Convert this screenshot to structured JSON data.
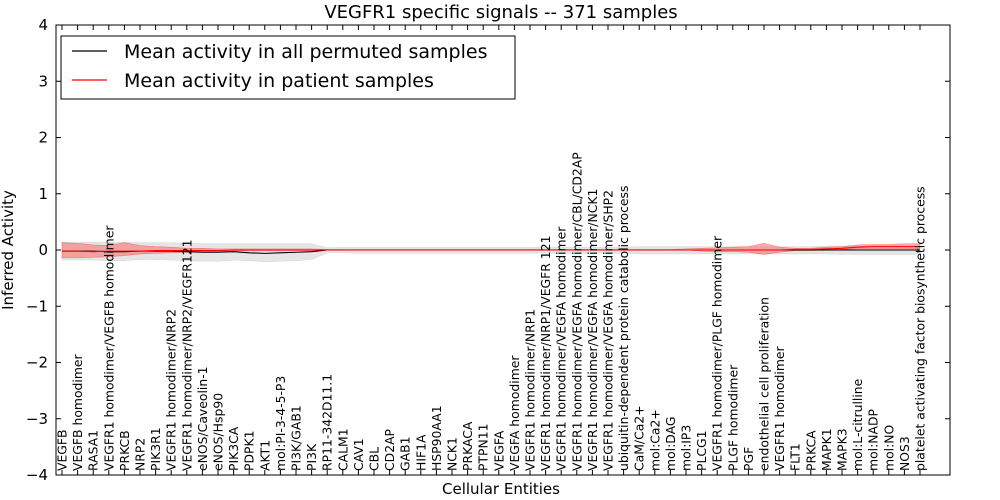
{
  "chart_data": {
    "type": "line",
    "title": "VEGFR1 specific signals -- 371 samples",
    "xlabel": "Cellular Entities",
    "ylabel": "Inferred Activity",
    "ylim": [
      -4,
      4
    ],
    "yticks": [
      -4,
      -3,
      -2,
      -1,
      0,
      1,
      2,
      3,
      4
    ],
    "grid": false,
    "legend_position": "top-left",
    "categories": [
      "VEGFB",
      "VEGFB homodimer",
      "RASA1",
      "VEGFR1 homodimer/VEGFB homodimer",
      "PRKCB",
      "NRP2",
      "PIK3R1",
      "VEGFR1 homodimer/NRP2",
      "VEGFR1 homodimer/NRP2/VEGFR121",
      "eNOS/Caveolin-1",
      "eNOS/Hsp90",
      "PIK3CA",
      "PDPK1",
      "AKT1",
      "mol:PI-3-4-5-P3",
      "PI3K/GAB1",
      "PI3K",
      "RP11-342D11.1",
      "CALM1",
      "CAV1",
      "CBL",
      "CD2AP",
      "GAB1",
      "HIF1A",
      "HSP90AA1",
      "NCK1",
      "PRKACA",
      "PTPN11",
      "VEGFA",
      "VEGFA homodimer",
      "VEGFR1 homodimer/NRP1",
      "VEGFR1 homodimer/NRP1/VEGFR 121",
      "VEGFR1 homodimer/VEGFA homodimer",
      "VEGFR1 homodimer/VEGFA homodimer/CBL/CD2AP",
      "VEGFR1 homodimer/VEGFA homodimer/NCK1",
      "VEGFR1 homodimer/VEGFA homodimer/SHP2",
      "ubiquitin-dependent protein catabolic process",
      "CaM/Ca2+",
      "mol:Ca2+",
      "mol:DAG",
      "mol:IP3",
      "PLCG1",
      "VEGFR1 homodimer/PLGF homodimer",
      "PLGF homodimer",
      "PGF",
      "endothelial cell proliferation",
      "VEGFR1 homodimer",
      "FLT1",
      "PRKCA",
      "MAPK1",
      "MAPK3",
      "mol:L-citrulline",
      "mol:NADP",
      "mol:NO",
      "NOS3",
      "platelet activating factor biosynthetic process"
    ],
    "series": [
      {
        "name": "Mean activity in all permuted samples",
        "color": "#000000",
        "values": [
          -0.02,
          -0.02,
          -0.02,
          -0.03,
          -0.03,
          -0.02,
          -0.02,
          -0.02,
          -0.03,
          -0.04,
          -0.04,
          -0.03,
          -0.05,
          -0.06,
          -0.05,
          -0.04,
          -0.03,
          0,
          0,
          0,
          0,
          0,
          0,
          0,
          0,
          0,
          0,
          0,
          0,
          0,
          0,
          0,
          0,
          0,
          0,
          0,
          0,
          0,
          0,
          0,
          0,
          0,
          0,
          0,
          0,
          0,
          0,
          0,
          0,
          0,
          0,
          0,
          0,
          0,
          0,
          0
        ],
        "band_low": [
          -0.18,
          -0.18,
          -0.18,
          -0.19,
          -0.19,
          -0.17,
          -0.17,
          -0.18,
          -0.19,
          -0.2,
          -0.2,
          -0.18,
          -0.19,
          -0.21,
          -0.2,
          -0.19,
          -0.17,
          -0.05,
          -0.05,
          -0.06,
          -0.06,
          -0.06,
          -0.06,
          -0.06,
          -0.06,
          -0.06,
          -0.06,
          -0.06,
          -0.06,
          -0.06,
          -0.06,
          -0.06,
          -0.06,
          -0.06,
          -0.06,
          -0.06,
          -0.06,
          -0.07,
          -0.07,
          -0.07,
          -0.07,
          -0.07,
          -0.07,
          -0.07,
          -0.07,
          -0.07,
          -0.07,
          -0.07,
          -0.07,
          -0.07,
          -0.08,
          -0.08,
          -0.08,
          -0.08,
          -0.08,
          -0.08
        ],
        "band_high": [
          0.14,
          0.14,
          0.14,
          0.14,
          0.14,
          0.13,
          0.13,
          0.13,
          0.12,
          0.11,
          0.11,
          0.11,
          0.11,
          0.11,
          0.11,
          0.11,
          0.11,
          0.04,
          0.05,
          0.05,
          0.05,
          0.05,
          0.05,
          0.05,
          0.05,
          0.05,
          0.05,
          0.05,
          0.05,
          0.05,
          0.05,
          0.05,
          0.05,
          0.05,
          0.05,
          0.05,
          0.05,
          0.06,
          0.06,
          0.06,
          0.06,
          0.06,
          0.06,
          0.06,
          0.06,
          0.06,
          0.06,
          0.06,
          0.06,
          0.07,
          0.07,
          0.07,
          0.07,
          0.07,
          0.07,
          0.07
        ]
      },
      {
        "name": "Mean activity in patient samples",
        "color": "#ff0000",
        "values": [
          -0.02,
          -0.02,
          -0.03,
          -0.02,
          -0.02,
          -0.02,
          -0.01,
          -0.01,
          -0.01,
          -0.01,
          -0.01,
          0,
          0,
          0,
          0,
          0,
          0,
          0,
          0,
          0,
          0,
          0,
          0,
          0,
          0,
          0,
          0,
          0,
          0,
          0,
          0,
          0,
          0,
          0,
          0,
          0,
          0,
          0,
          0,
          0,
          0,
          0,
          0,
          0,
          0,
          0,
          0,
          0.01,
          0.01,
          0.02,
          0.03,
          0.05,
          0.06,
          0.06,
          0.06,
          0.06
        ],
        "band_low": [
          -0.14,
          -0.14,
          -0.13,
          -0.12,
          -0.1,
          -0.07,
          -0.06,
          -0.05,
          -0.04,
          -0.03,
          -0.03,
          -0.02,
          -0.01,
          -0.01,
          -0.01,
          -0.01,
          -0.01,
          0,
          0,
          0,
          0,
          0,
          0,
          0,
          0,
          0,
          0,
          0,
          0,
          0,
          0,
          0,
          0,
          0,
          0,
          0,
          0,
          0,
          0,
          0,
          0,
          -0.02,
          -0.03,
          -0.03,
          -0.04,
          -0.08,
          -0.04,
          -0.01,
          -0.01,
          0,
          0.01,
          0.02,
          0.02,
          0.02,
          0.02,
          0.02
        ],
        "band_high": [
          0.13,
          0.12,
          0.09,
          0.08,
          0.13,
          0.08,
          0.06,
          0.05,
          0.03,
          0.03,
          0.02,
          0.02,
          0.02,
          0.02,
          0.02,
          0.02,
          0.02,
          0.01,
          0.01,
          0.01,
          0.01,
          0.01,
          0.01,
          0.01,
          0.01,
          0.01,
          0.01,
          0.01,
          0.01,
          0.01,
          0.01,
          0.01,
          0.01,
          0.01,
          0.01,
          0.01,
          0.01,
          0.01,
          0.01,
          0.01,
          0.02,
          0.03,
          0.04,
          0.05,
          0.06,
          0.12,
          0.05,
          0.03,
          0.03,
          0.05,
          0.06,
          0.09,
          0.1,
          0.1,
          0.11,
          0.11
        ]
      }
    ]
  }
}
